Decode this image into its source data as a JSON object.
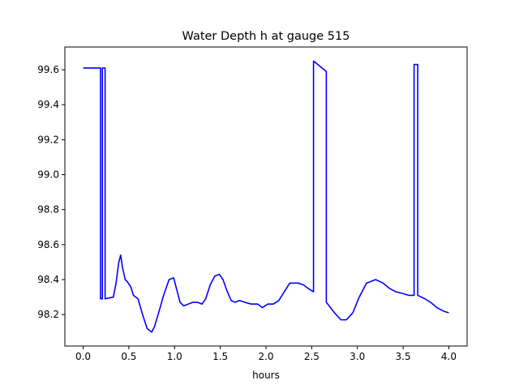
{
  "chart_data": {
    "type": "line",
    "title": "Water Depth h at gauge 515",
    "xlabel": "hours",
    "ylabel": "",
    "xlim": [
      -0.2,
      4.2
    ],
    "ylim": [
      98.02,
      99.73
    ],
    "xticks": [
      0.0,
      0.5,
      1.0,
      1.5,
      2.0,
      2.5,
      3.0,
      3.5,
      4.0
    ],
    "xtick_labels": [
      "0.0",
      "0.5",
      "1.0",
      "1.5",
      "2.0",
      "2.5",
      "3.0",
      "3.5",
      "4.0"
    ],
    "yticks": [
      98.2,
      98.4,
      98.6,
      98.8,
      99.0,
      99.2,
      99.4,
      99.6
    ],
    "ytick_labels": [
      "98.2",
      "98.4",
      "98.6",
      "98.8",
      "99.0",
      "99.2",
      "99.4",
      "99.6"
    ],
    "grid": false,
    "series": [
      {
        "color": "#0000ff",
        "x": [
          0.0,
          0.19,
          0.19,
          0.21,
          0.21,
          0.24,
          0.24,
          0.33,
          0.36,
          0.39,
          0.41,
          0.43,
          0.46,
          0.48,
          0.52,
          0.55,
          0.6,
          0.65,
          0.7,
          0.75,
          0.78,
          0.82,
          0.88,
          0.94,
          0.99,
          1.02,
          1.06,
          1.1,
          1.15,
          1.2,
          1.25,
          1.3,
          1.34,
          1.39,
          1.44,
          1.49,
          1.53,
          1.57,
          1.62,
          1.66,
          1.71,
          1.77,
          1.84,
          1.91,
          1.96,
          2.02,
          2.08,
          2.14,
          2.2,
          2.26,
          2.3,
          2.35,
          2.41,
          2.46,
          2.52,
          2.52,
          2.66,
          2.66,
          2.75,
          2.82,
          2.88,
          2.95,
          3.02,
          3.1,
          3.2,
          3.28,
          3.35,
          3.42,
          3.5,
          3.56,
          3.6,
          3.62,
          3.62,
          3.66,
          3.66,
          3.74,
          3.8,
          3.87,
          3.94,
          4.0
        ],
        "y": [
          99.61,
          99.61,
          98.29,
          98.29,
          99.61,
          99.61,
          98.29,
          98.3,
          98.38,
          98.5,
          98.54,
          98.47,
          98.4,
          98.39,
          98.36,
          98.31,
          98.29,
          98.2,
          98.12,
          98.1,
          98.13,
          98.2,
          98.31,
          98.4,
          98.41,
          98.35,
          98.27,
          98.25,
          98.26,
          98.27,
          98.27,
          98.26,
          98.29,
          98.37,
          98.42,
          98.43,
          98.4,
          98.34,
          98.28,
          98.27,
          98.28,
          98.27,
          98.26,
          98.26,
          98.24,
          98.26,
          98.26,
          98.28,
          98.33,
          98.38,
          98.38,
          98.38,
          98.37,
          98.35,
          98.33,
          99.65,
          99.59,
          98.27,
          98.21,
          98.17,
          98.17,
          98.21,
          98.3,
          98.38,
          98.4,
          98.38,
          98.35,
          98.33,
          98.32,
          98.31,
          98.31,
          98.31,
          99.63,
          99.63,
          98.31,
          98.29,
          98.27,
          98.24,
          98.22,
          98.21
        ]
      }
    ]
  }
}
